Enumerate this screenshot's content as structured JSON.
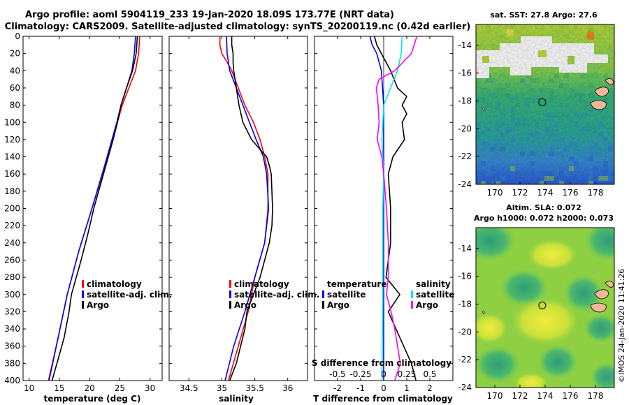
{
  "title": {
    "line1": "Argo profile: aoml 5904119_233 19-Jan-2020 18.09S 173.77E (NRT data)",
    "line2": "Climatology: CARS2009. Satellite-adjusted climatology: synTS_20200119.nc (0.42d earlier)"
  },
  "timestamp": "©IMOS 24-Jan-2020 11:41:26",
  "chart_data": [
    {
      "id": "temperature",
      "type": "line",
      "xlabel": "temperature (deg C)",
      "xlim": [
        9,
        32
      ],
      "xticks": [
        10,
        15,
        20,
        25,
        30
      ],
      "ylim": [
        0,
        400
      ],
      "yticks": [
        0,
        20,
        40,
        60,
        80,
        100,
        120,
        140,
        160,
        180,
        200,
        220,
        240,
        260,
        280,
        300,
        320,
        340,
        360,
        380,
        400
      ],
      "y_reversed": true,
      "legend": {
        "position": "lower-right",
        "entries": [
          "climatology",
          "satellite-adj. clim.",
          "Argo"
        ]
      },
      "series": [
        {
          "name": "climatology",
          "color": "#ff0000",
          "depth": [
            0,
            20,
            40,
            60,
            80,
            100,
            150,
            200,
            250,
            300,
            350,
            400
          ],
          "values": [
            28.3,
            28.1,
            27.6,
            26.5,
            25.4,
            24.6,
            22.6,
            20.4,
            18.2,
            16.3,
            14.8,
            13.2
          ]
        },
        {
          "name": "satellite-adj. clim.",
          "color": "#0000ff",
          "depth": [
            0,
            20,
            40,
            60,
            80,
            100,
            150,
            200,
            250,
            300,
            350,
            400
          ],
          "values": [
            27.6,
            27.4,
            27.0,
            26.1,
            25.2,
            24.5,
            22.5,
            20.4,
            18.2,
            16.3,
            14.8,
            13.3
          ]
        },
        {
          "name": "Argo",
          "color": "#000000",
          "depth": [
            0,
            10,
            20,
            40,
            60,
            80,
            100,
            120,
            140,
            160,
            200,
            230,
            260,
            300,
            320,
            350,
            380,
            400
          ],
          "values": [
            27.9,
            27.8,
            27.7,
            27.1,
            26.1,
            25.2,
            24.6,
            23.9,
            23.1,
            22.3,
            20.7,
            19.7,
            18.6,
            17.0,
            16.6,
            15.8,
            14.6,
            13.8
          ]
        }
      ]
    },
    {
      "id": "salinity",
      "type": "line",
      "xlabel": "salinity",
      "xlim": [
        34.2,
        36.3
      ],
      "xticks": [
        34.5,
        35,
        35.5,
        36
      ],
      "ylim": [
        0,
        400
      ],
      "y_reversed": true,
      "legend": {
        "position": "lower-right",
        "entries": [
          "climatology",
          "satellite-adj. clim.",
          "Argo"
        ]
      },
      "series": [
        {
          "name": "climatology",
          "color": "#ff0000",
          "depth": [
            0,
            10,
            20,
            30,
            40,
            60,
            80,
            100,
            120,
            140,
            160,
            200,
            240,
            280,
            320,
            360,
            400
          ],
          "values": [
            34.97,
            34.97,
            35.0,
            35.08,
            35.15,
            35.25,
            35.35,
            35.48,
            35.58,
            35.65,
            35.7,
            35.7,
            35.65,
            35.5,
            35.4,
            35.25,
            35.1
          ]
        },
        {
          "name": "satellite-adj. clim.",
          "color": "#0000ff",
          "depth": [
            0,
            20,
            40,
            60,
            80,
            100,
            120,
            140,
            160,
            200,
            240,
            280,
            320,
            360,
            400
          ],
          "values": [
            35.07,
            35.08,
            35.12,
            35.22,
            35.32,
            35.42,
            35.52,
            35.63,
            35.68,
            35.71,
            35.65,
            35.5,
            35.35,
            35.18,
            35.05
          ]
        },
        {
          "name": "Argo",
          "color": "#000000",
          "depth": [
            0,
            10,
            20,
            30,
            40,
            60,
            80,
            100,
            120,
            135,
            140,
            150,
            160,
            200,
            220,
            240,
            280,
            320,
            340,
            380,
            400
          ],
          "values": [
            35.15,
            35.15,
            35.17,
            35.17,
            35.18,
            35.22,
            35.26,
            35.32,
            35.45,
            35.62,
            35.68,
            35.72,
            35.75,
            35.77,
            35.76,
            35.72,
            35.58,
            35.38,
            35.35,
            35.22,
            35.12
          ]
        }
      ]
    },
    {
      "id": "difference",
      "type": "line",
      "xlabel": "T difference from climatology",
      "xlabel_top": "S difference from climatology",
      "xlim": [
        -3,
        3
      ],
      "xticks": [
        -2,
        -1,
        0,
        1,
        2
      ],
      "xticks_top": [
        -0.5,
        -0.25,
        0,
        0.25,
        0.5
      ],
      "ylim": [
        0,
        400
      ],
      "y_reversed": true,
      "legend": {
        "position": "lower",
        "temperature_heading": "temperature",
        "salinity_heading": "salinity",
        "entries_left": [
          "satellite",
          "Argo"
        ],
        "entries_right": [
          "satellite",
          "Argo"
        ]
      },
      "series": [
        {
          "name": "temperature satellite",
          "color": "#0000ff",
          "depth": [
            0,
            10,
            20,
            40,
            80,
            150,
            200,
            300,
            400
          ],
          "values": [
            -0.6,
            -0.5,
            -0.3,
            -0.1,
            0.0,
            0.0,
            0.0,
            0.0,
            0.0
          ]
        },
        {
          "name": "temperature Argo",
          "color": "#000000",
          "depth": [
            0,
            10,
            20,
            40,
            60,
            70,
            80,
            90,
            100,
            120,
            140,
            160,
            200,
            240,
            280,
            300,
            320,
            350,
            380,
            400
          ],
          "values": [
            -0.4,
            -0.3,
            -0.1,
            0.3,
            0.6,
            1.0,
            0.8,
            1.0,
            0.8,
            0.9,
            0.4,
            0.2,
            0.3,
            0.3,
            0.1,
            0.7,
            0.2,
            0.7,
            1.2,
            1.4
          ]
        },
        {
          "name": "salinity satellite",
          "color": "#00e5ee",
          "depth": [
            0,
            20,
            40,
            80,
            120,
            160,
            200,
            300,
            400
          ],
          "values": [
            0.2,
            0.19,
            0.15,
            0.0,
            -0.02,
            0.0,
            -0.01,
            -0.01,
            -0.02
          ]
        },
        {
          "name": "salinity Argo",
          "color": "#ff00ff",
          "depth": [
            0,
            20,
            40,
            50,
            60,
            80,
            100,
            120,
            140,
            160,
            200,
            240,
            280,
            300,
            320,
            340,
            360,
            380,
            400
          ],
          "values": [
            0.36,
            0.3,
            0.12,
            -0.05,
            -0.08,
            -0.06,
            -0.05,
            -0.07,
            -0.02,
            0.0,
            0.03,
            0.05,
            0.05,
            0.03,
            0.08,
            0.12,
            0.15,
            0.18,
            0.12
          ]
        }
      ]
    },
    {
      "id": "sst_map",
      "type": "heatmap",
      "title": "sat. SST: 27.8 Argo: 27.6",
      "xlim": [
        168.5,
        179.5
      ],
      "xticks": [
        170,
        172,
        174,
        176,
        178
      ],
      "ylim": [
        -24,
        -12.5
      ],
      "yticks": [
        -14,
        -16,
        -18,
        -20,
        -22,
        -24
      ],
      "argo_position": {
        "lon": 173.77,
        "lat": -18.09
      }
    },
    {
      "id": "sla_map",
      "type": "heatmap",
      "title": "Altim. SLA: 0.072",
      "subtitle": "Argo h1000: 0.072 h2000: 0.073",
      "xlim": [
        168.5,
        179.5
      ],
      "xticks": [
        170,
        172,
        174,
        176,
        178
      ],
      "ylim": [
        -24,
        -12.5
      ],
      "yticks": [
        -14,
        -16,
        -18,
        -20,
        -22,
        -24
      ],
      "argo_position": {
        "lon": 173.77,
        "lat": -18.09
      }
    }
  ]
}
